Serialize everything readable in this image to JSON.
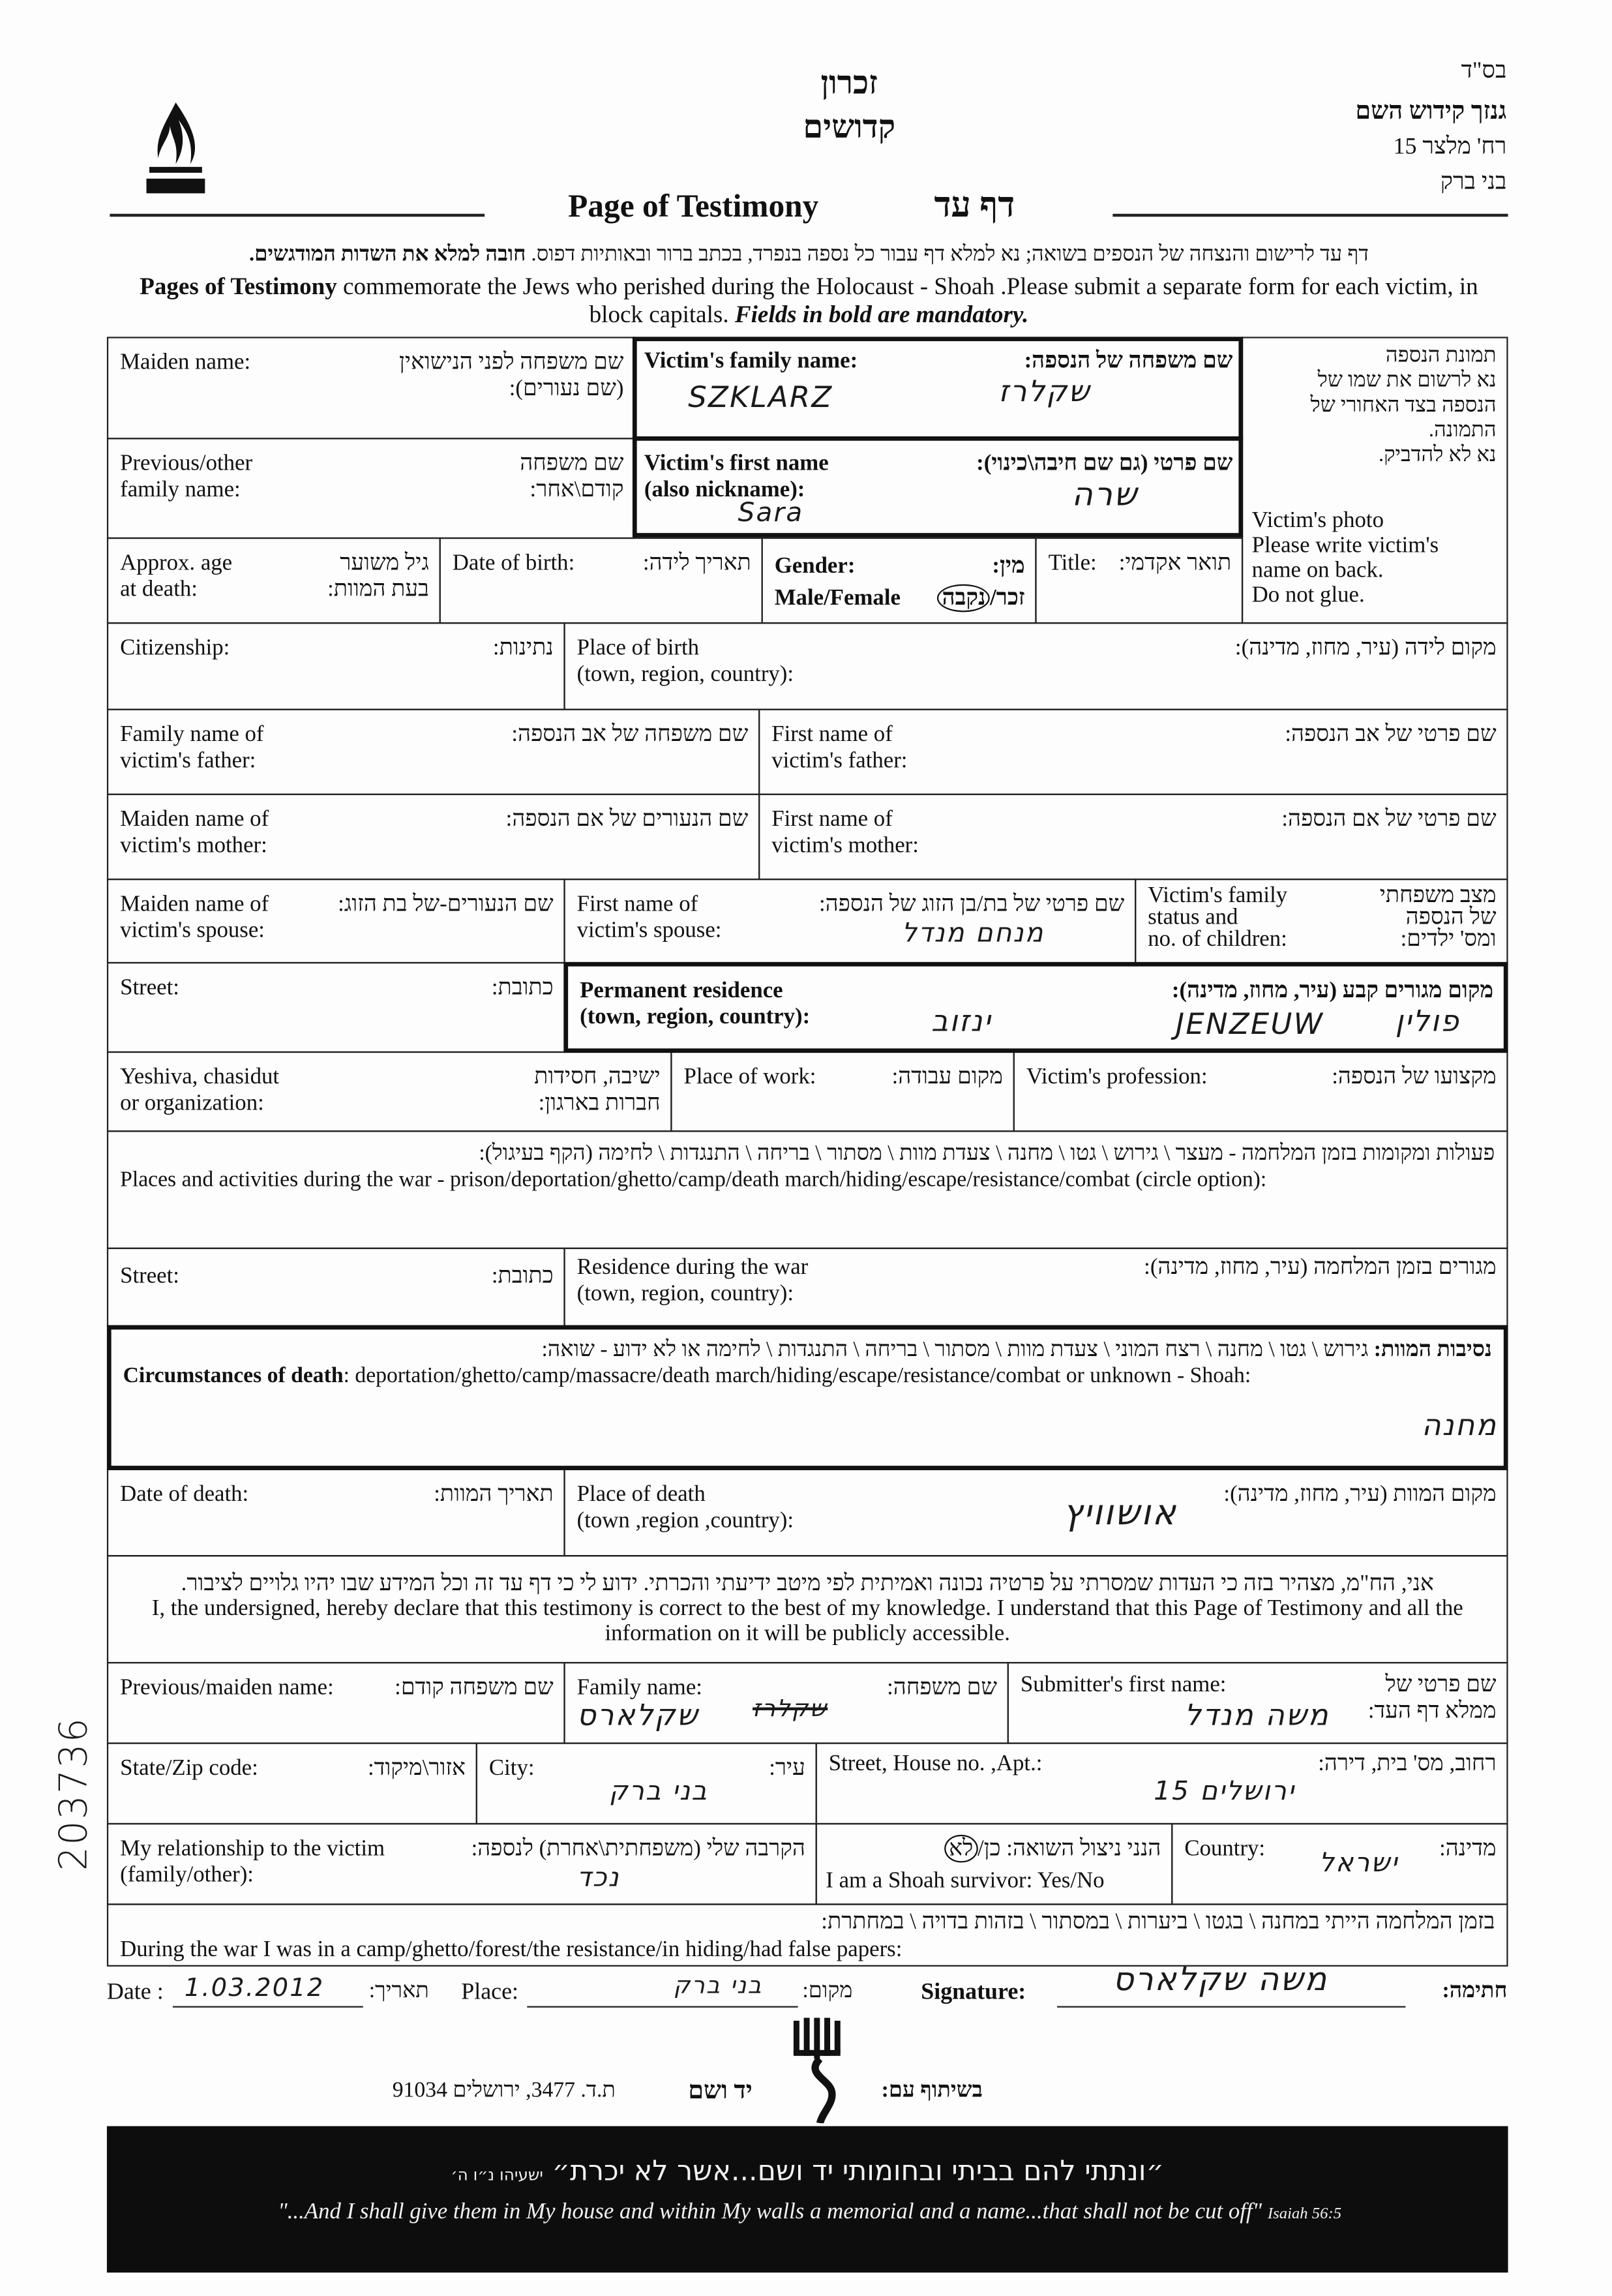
{
  "header": {
    "bsd": "בס\"ד",
    "archive_name": "גנזך קידוש השם",
    "archive_street": "רח' מלצר 15",
    "archive_city": "בני ברק",
    "zikaron": "זכרון",
    "kedoshim": "קדושים",
    "logo_text": "זכרון קדושים",
    "title_en": "Page of Testimony",
    "title_he": "דף עד"
  },
  "intro": {
    "he_normal": "דף עד לרישום והנצחה של הנספים בשואה; נא למלא דף עבור כל נספה בנפרד, בכתב ברור ובאותיות דפוס. ",
    "he_bold": "חובה למלא את השדות המודגשים.",
    "en_bold": "Pages of Testimony",
    "en_normal": " commemorate the Jews who perished during the Holocaust - Shoah .Please submit a separate form for each victim, in block capitals. ",
    "en_italic": "Fields in bold are mandatory."
  },
  "fields": {
    "maiden_name": {
      "en": "Maiden name:",
      "he": "שם משפחה לפני הנישואין\n(שם נעורים):"
    },
    "family_name": {
      "en": "Victim's family name:",
      "he": "שם משפחה של הנספה:",
      "value_latin": "SZKLARZ",
      "value_he": "שקלרז"
    },
    "prev_name": {
      "en": "Previous/other\nfamily name:",
      "he": "שם משפחה\nקודם\\אחר:"
    },
    "first_name": {
      "en": "Victim's first name\n(also nickname):",
      "he": "שם פרטי (גם שם חיבה\\כינוי):",
      "value_latin": "Sara",
      "value_he": "שרה"
    },
    "photo": {
      "he": "תמונת הנספה\nנא לרשום את שמו של\nהנספה בצד האחורי של\nהתמונה.\nנא לא להדביק.",
      "en": "Victim's photo\nPlease write victim's\nname on back.\nDo not glue."
    },
    "age": {
      "en": "Approx. age\nat death:",
      "he": "גיל משוער\nבעת המוות:"
    },
    "dob": {
      "en": "Date of birth:",
      "he": "תאריך לידה:"
    },
    "gender": {
      "en": "Gender:",
      "en_options": "Male/Female",
      "he": "מין:",
      "he_male": "זכר/",
      "he_female": "נקבה",
      "selected": "Female"
    },
    "title": {
      "en": "Title:",
      "he": "תואר אקדמי:"
    },
    "citizenship": {
      "en": "Citizenship:",
      "he": "נתינות:"
    },
    "birthplace": {
      "en": "Place of birth\n(town, region, country):",
      "he": "מקום לידה (עיר, מחוז, מדינה):"
    },
    "father_family": {
      "en": "Family name of\nvictim's father:",
      "he": "שם משפחה של אב הנספה:"
    },
    "father_first": {
      "en": "First name of\nvictim's father:",
      "he": "שם פרטי של אב הנספה:"
    },
    "mother_maiden": {
      "en": "Maiden name of\nvictim's mother:",
      "he": "שם הנעורים של אם הנספה:"
    },
    "mother_first": {
      "en": "First name of\nvictim's mother:",
      "he": "שם פרטי של אם הנספה:"
    },
    "spouse_maiden": {
      "en": "Maiden name of\nvictim's spouse:",
      "he": "שם הנעורים-של בת הזוג:"
    },
    "spouse_first": {
      "en": "First name of\nvictim's spouse:",
      "he": "שם פרטי של בת/בן הזוג של הנספה:",
      "value": "מנחם מנדל"
    },
    "family_status": {
      "en": "Victim's family\nstatus and\nno. of children:",
      "he": "מצב משפחתי\nשל הנספה\nומס' ילדים:"
    },
    "street": {
      "en": "Street:",
      "he": "כתובת:"
    },
    "perm_res": {
      "en": "Permanent residence\n(town, region, country):",
      "he": "מקום מגורים קבע (עיר, מחוז, מדינה):",
      "value_he_town": "ינזוב",
      "value_latin": "JENZEUW",
      "value_country": "פולין"
    },
    "yeshiva": {
      "en": "Yeshiva, chasidut\nor organization:",
      "he": "ישיבה, חסידות\nחברות בארגון:"
    },
    "work": {
      "en": "Place of work:",
      "he": "מקום עבודה:"
    },
    "profession": {
      "en": "Victim's profession:",
      "he": "מקצועו של הנספה:"
    },
    "war_places": {
      "he": "פעולות ומקומות בזמן המלחמה - מעצר \\ גירוש \\ גטו \\ מחנה \\ צעדת מוות \\ מסתור \\ בריחה \\ התנגדות \\ לחימה (הקף בעיגול):",
      "en": "Places and activities during the war - prison/deportation/ghetto/camp/death march/hiding/escape/resistance/combat (circle option):"
    },
    "war_street": {
      "en": "Street:",
      "he": "כתובת:"
    },
    "war_res": {
      "en": "Residence during the war\n(town, region, country):",
      "he": "מגורים בזמן המלחמה (עיר, מחוז, מדינה):"
    },
    "circumstances": {
      "he_bold": "נסיבות המוות:",
      "he": " גירוש \\ גטו \\ מחנה \\ רצח המוני \\ צעדת מוות \\ מסתור \\ בריחה \\ התנגדות \\ לחימה או לא ידוע - שואה:",
      "en_bold": "Circumstances of death",
      "en": ": deportation/ghetto/camp/massacre/death march/hiding/escape/resistance/combat or unknown - Shoah:",
      "value": "מחנה"
    },
    "dod": {
      "en": "Date of death:",
      "he": "תאריך המוות:"
    },
    "pod": {
      "en": "Place of death\n(town ,region ,country):",
      "he": "מקום המוות (עיר, מחוז, מדינה):",
      "value": "אושוויץ"
    },
    "declaration": {
      "he": "אני, הח\"מ, מצהיר בזה כי העדות שמסרתי על פרטיה נכונה ואמיתית לפי מיטב ידיעתי והכרתי. ידוע לי כי דף עד זה וכל המידע שבו יהיו גלויים לציבור.",
      "en": "I, the undersigned, hereby declare that this testimony is correct to the best of my knowledge. I understand that this Page of Testimony and all the information on it will be publicly accessible."
    },
    "sub_prev": {
      "en": "Previous/maiden name:",
      "he": "שם משפחה קודם:"
    },
    "sub_family": {
      "en": "Family name:",
      "he": "שם משפחה:",
      "value": "שקלארס",
      "struck_value": "שקלרז"
    },
    "sub_first": {
      "en": "Submitter's first name:",
      "he": "שם פרטי של\nממלא דף העד:",
      "value": "משה מנדל"
    },
    "state": {
      "en": "State/Zip code:",
      "he": "אזור\\מיקוד:"
    },
    "city": {
      "en": "City:",
      "he": "עיר:",
      "value": "בני ברק"
    },
    "street_house": {
      "en": "Street, House no. ,Apt.:",
      "he": "רחוב, מס' בית, דירה:",
      "value": "ירושלים 15"
    },
    "relationship": {
      "en": "My relationship to the victim\n(family/other):",
      "he": "הקרבה שלי (משפחתית\\אחרת) לנספה:",
      "value": "נכד"
    },
    "survivor": {
      "en": "I am a Shoah survivor:  Yes/No",
      "he": "הנני ניצול השואה: כן/",
      "he_no": "לא",
      "selected": "No"
    },
    "country": {
      "en": "Country:",
      "he": "מדינה:",
      "value": "ישראל"
    },
    "war_submitter": {
      "he": "בזמן המלחמה הייתי במחנה \\ בגטו \\ ביערות \\ במסתור \\ בזהות בדויה \\ במחתרת:",
      "en": "During the war I was in a camp/ghetto/forest/the resistance/in hiding/had false papers:"
    }
  },
  "footer": {
    "date_en": "Date :",
    "date_value": "1.03.2012",
    "date_he": "תאריך:",
    "place_en": "Place:",
    "place_value": "בני ברק",
    "place_he": "מקום:",
    "signature_en": "Signature:",
    "signature_value": "משה שקלארס",
    "signature_he": "חתימה:",
    "partner_label": "בשיתוף עם:",
    "yad_vashem": "יד ושם",
    "address": "ת.ד. 3477, ירושלים 91034",
    "quote_he": "״ונתתי להם בביתי ובחומותי יד ושם...אשר לא יכרת״",
    "quote_he_ref": "ישעיהו נ״ו ה׳",
    "quote_en": "\"...And I shall give them in My house and within My walls a memorial and a name...that shall not be cut off\"",
    "quote_en_ref": "Isaiah 56:5"
  },
  "margin_number": "203736"
}
